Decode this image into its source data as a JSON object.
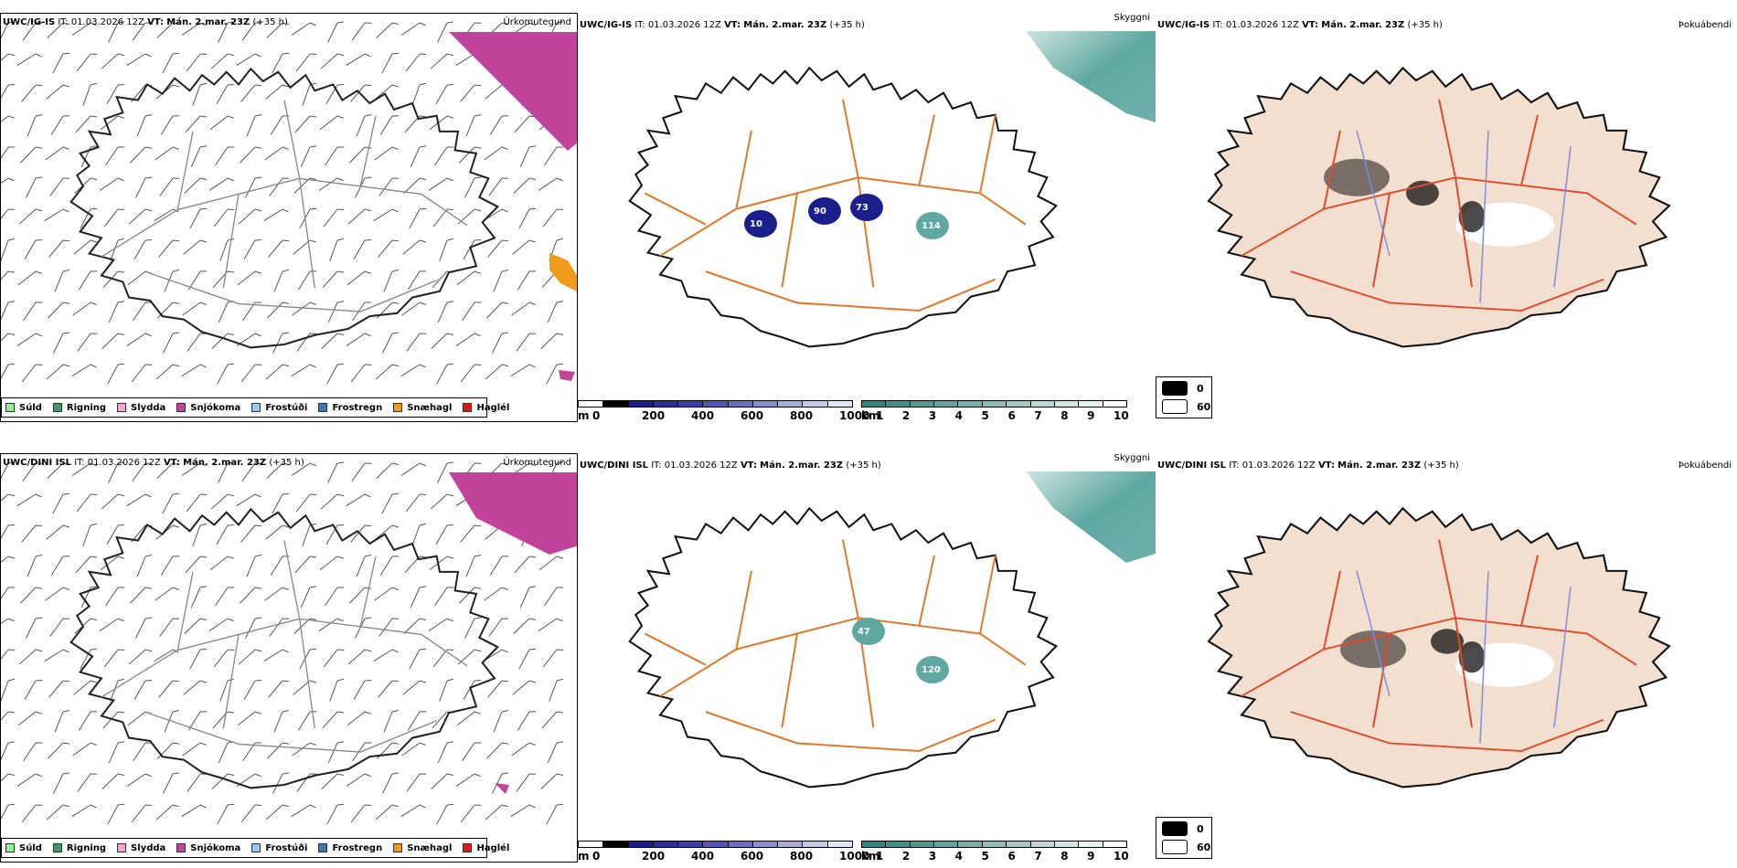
{
  "rows": [
    {
      "model": "UWC/IG-IS",
      "it_label": "IT:",
      "it_value": "01.03.2026 12Z",
      "vt_label": "VT:",
      "vt_value": "Mán. 2.mar. 23Z",
      "lead": "(+35 h)",
      "panels": {
        "precip": "Úrkomutegund",
        "cloud": "Skyggni",
        "fog": "Þokuábendi"
      },
      "snow_labels": [
        "90",
        "73",
        "10",
        "114"
      ]
    },
    {
      "model": "UWC/DINI ISL",
      "it_label": "IT:",
      "it_value": "01.03.2026 12Z",
      "vt_label": "VT:",
      "vt_value": "Mán. 2.mar. 23Z",
      "lead": "(+35 h)",
      "panels": {
        "precip": "Úrkomutegund",
        "cloud": "Skyggni",
        "fog": "Þokuábendi"
      },
      "snow_labels": [
        "120",
        "47"
      ]
    }
  ],
  "precip_legend": [
    {
      "label": "Súld",
      "color": "#8ef08e"
    },
    {
      "label": "Rigning",
      "color": "#3f9a6a"
    },
    {
      "label": "Slydda",
      "color": "#f4a6d2"
    },
    {
      "label": "Snjókoma",
      "color": "#c2449a"
    },
    {
      "label": "Frostúði",
      "color": "#9cc8ee"
    },
    {
      "label": "Frostregn",
      "color": "#3a78b8"
    },
    {
      "label": "Snæhagl",
      "color": "#f29a1a"
    },
    {
      "label": "Haglél",
      "color": "#e01818"
    }
  ],
  "height_bar": {
    "unit": "m",
    "ticks": [
      "0",
      "200",
      "400",
      "600",
      "800",
      "1000"
    ],
    "colors": [
      "#ffffff",
      "#000000",
      "#1b1f8c",
      "#2a2f9a",
      "#3b40a6",
      "#5258b2",
      "#6a70bd",
      "#8a8fcb",
      "#a8acd9",
      "#c6c9e6",
      "#e3e5f3"
    ]
  },
  "vis_bar": {
    "unit": "km",
    "ticks": [
      "1",
      "2",
      "3",
      "4",
      "5",
      "6",
      "7",
      "8",
      "9",
      "10"
    ],
    "colors": [
      "#2e8680",
      "#3f918b",
      "#52998f",
      "#66a59e",
      "#7ab0aa",
      "#8ebcb7",
      "#a4c9c5",
      "#bad7d3",
      "#d1e5e2",
      "#e8f2f1",
      "#ffffff"
    ]
  },
  "fog_legend": [
    {
      "label": "0",
      "color": "#000000"
    },
    {
      "label": "60",
      "color": "#ffffff"
    }
  ],
  "colors": {
    "snow_magenta": "#c2449a",
    "sea_teal": "#5fa8a2",
    "land_fog": "#f2dfcf",
    "road_orange": "#e07a2a",
    "road_red": "#e04a2a",
    "river_blue": "#7a8ee0",
    "snow_navy": "#1b1f8c"
  }
}
